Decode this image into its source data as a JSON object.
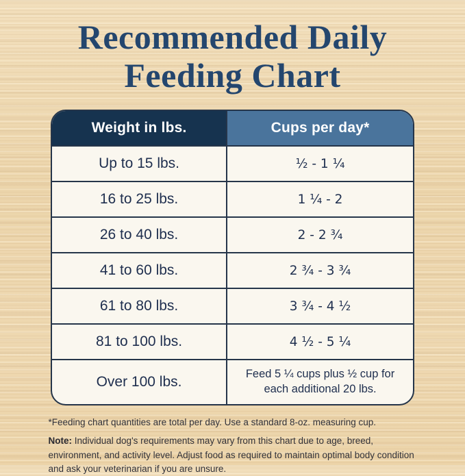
{
  "page": {
    "title_line1": "Recommended Daily",
    "title_line2": "Feeding Chart"
  },
  "table": {
    "headers": {
      "weight": "Weight in lbs.",
      "cups": "Cups per day*"
    },
    "rows": [
      {
        "weight": "Up to 15 lbs.",
        "cups": "¹⁄₂ - 1 ¹⁄₄"
      },
      {
        "weight": "16 to 25 lbs.",
        "cups": "1 ¹⁄₄ - 2"
      },
      {
        "weight": "26 to 40 lbs.",
        "cups": "2 - 2 ³⁄₄"
      },
      {
        "weight": "41 to 60 lbs.",
        "cups": "2 ³⁄₄ - 3 ³⁄₄"
      },
      {
        "weight": "61 to 80 lbs.",
        "cups": "3 ³⁄₄ - 4 ¹⁄₂"
      },
      {
        "weight": "81 to 100 lbs.",
        "cups": "4 ¹⁄₂ - 5 ¹⁄₄"
      },
      {
        "weight": "Over 100 lbs.",
        "cups": "Feed 5 ¼ cups plus ½ cup for each additional 20 lbs."
      }
    ]
  },
  "footnotes": {
    "quantities": "*Feeding chart quantities are total per day. Use a standard 8-oz. measuring cup.",
    "note_label": "Note:",
    "note_text": " Individual dog's requirements may vary from this chart due to age, breed, environment, and activity level. Adjust food as required to maintain optimal body condition and ask your veterinarian if you are unsure."
  },
  "colors": {
    "title_navy": "#24466e",
    "header_dark_bg": "#16334f",
    "header_blue_bg": "#4a749c",
    "border_navy": "#25354a",
    "row_bg": "#faf7ef",
    "wood_bg": "#eed7af"
  },
  "chart_data": {
    "type": "table",
    "title": "Recommended Daily Feeding Chart",
    "columns": [
      "Weight in lbs.",
      "Cups per day*"
    ],
    "rows": [
      [
        "Up to 15 lbs.",
        "1/2 - 1 1/4"
      ],
      [
        "16 to 25 lbs.",
        "1 1/4 - 2"
      ],
      [
        "26 to 40 lbs.",
        "2 - 2 3/4"
      ],
      [
        "41 to 60 lbs.",
        "2 3/4 - 3 3/4"
      ],
      [
        "61 to 80 lbs.",
        "3 3/4 - 4 1/2"
      ],
      [
        "81 to 100 lbs.",
        "4 1/2 - 5 1/4"
      ],
      [
        "Over 100 lbs.",
        "Feed 5 1/4 cups plus 1/2 cup for each additional 20 lbs."
      ]
    ],
    "notes": [
      "*Feeding chart quantities are total per day. Use a standard 8-oz. measuring cup.",
      "Note: Individual dog's requirements may vary from this chart due to age, breed, environment, and activity level. Adjust food as required to maintain optimal body condition and ask your veterinarian if you are unsure."
    ]
  }
}
